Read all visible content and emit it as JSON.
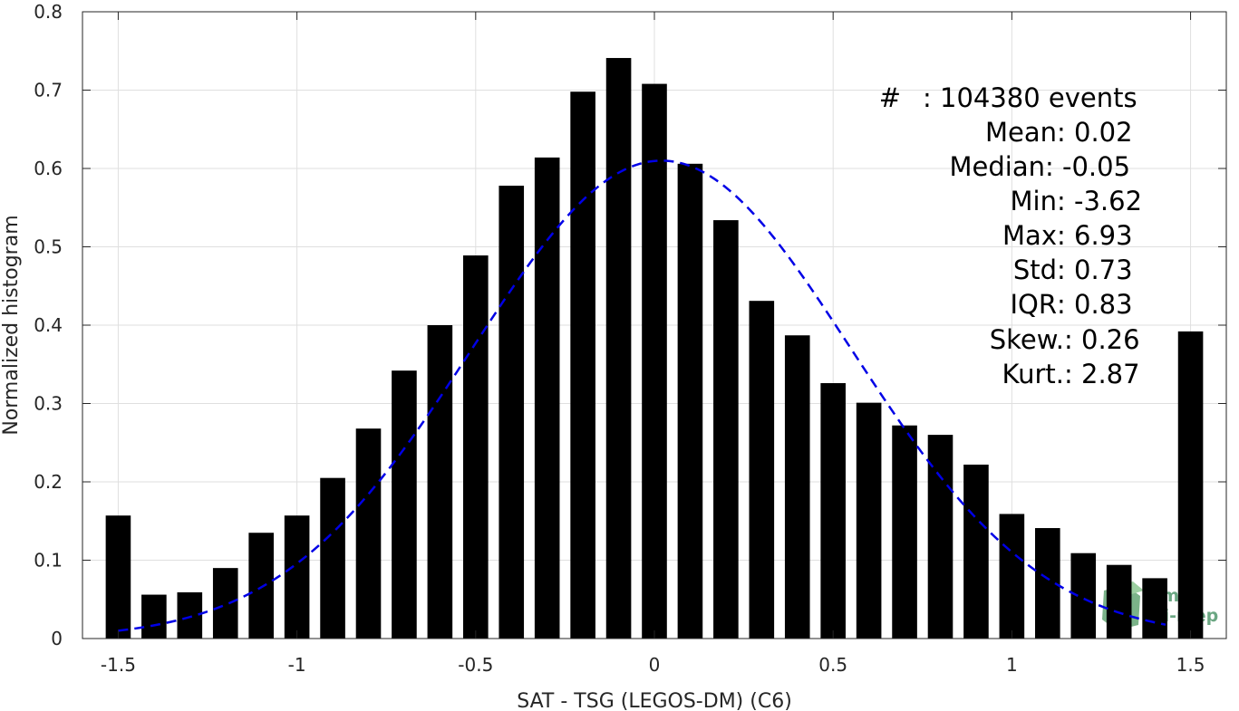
{
  "chart_data": {
    "type": "bar",
    "xlabel": "SAT - TSG (LEGOS-DM) (C6)",
    "ylabel": "Normalized histogram",
    "xlim": [
      -1.6,
      1.6
    ],
    "ylim": [
      0,
      0.8
    ],
    "x_ticks": [
      -1.5,
      -1,
      -0.5,
      0,
      0.5,
      1,
      1.5
    ],
    "x_tick_labels": [
      "-1.5",
      "-1",
      "-0.5",
      "0",
      "0.5",
      "1",
      "1.5"
    ],
    "y_ticks": [
      0,
      0.1,
      0.2,
      0.3,
      0.4,
      0.5,
      0.6,
      0.7,
      0.8
    ],
    "y_tick_labels": [
      "0",
      "0.1",
      "0.2",
      "0.3",
      "0.4",
      "0.5",
      "0.6",
      "0.7",
      "0.8"
    ],
    "grid": true,
    "bar_width": 0.07,
    "bar_color": "#000000",
    "curve_color": "#0000e6",
    "bars": {
      "x": [
        -1.5,
        -1.4,
        -1.3,
        -1.2,
        -1.1,
        -1.0,
        -0.9,
        -0.8,
        -0.7,
        -0.6,
        -0.5,
        -0.4,
        -0.3,
        -0.2,
        -0.1,
        0.0,
        0.1,
        0.2,
        0.3,
        0.4,
        0.5,
        0.6,
        0.7,
        0.8,
        0.9,
        1.0,
        1.1,
        1.2,
        1.3,
        1.4,
        1.5
      ],
      "values": [
        0.157,
        0.056,
        0.059,
        0.09,
        0.135,
        0.157,
        0.205,
        0.268,
        0.342,
        0.4,
        0.489,
        0.578,
        0.614,
        0.698,
        0.741,
        0.708,
        0.606,
        0.534,
        0.431,
        0.387,
        0.326,
        0.301,
        0.272,
        0.26,
        0.222,
        0.159,
        0.141,
        0.109,
        0.094,
        0.077,
        0.392
      ]
    },
    "fit_curve": {
      "style": "dashed",
      "mean": 0.02,
      "peak": 0.61,
      "sigma": 0.53,
      "x_range": [
        -1.5,
        1.43
      ]
    },
    "stats": [
      {
        "label": "#",
        "value": ": 104380 events"
      },
      {
        "label": "Mean",
        "value": ": 0.02"
      },
      {
        "label": "Median",
        "value": ": -0.05"
      },
      {
        "label": "Min",
        "value": ": -3.62"
      },
      {
        "label": "Max",
        "value": ": 6.93"
      },
      {
        "label": "Std",
        "value": ": 0.73"
      },
      {
        "label": "IQR",
        "value": ": 0.83"
      },
      {
        "label": "Skew.",
        "value": ": 0.26"
      },
      {
        "label": "Kurt.",
        "value": ": 2.87"
      }
    ],
    "logo": {
      "line1": "smos",
      "line2": "pi-mep",
      "color": "#3a8a5a"
    }
  }
}
